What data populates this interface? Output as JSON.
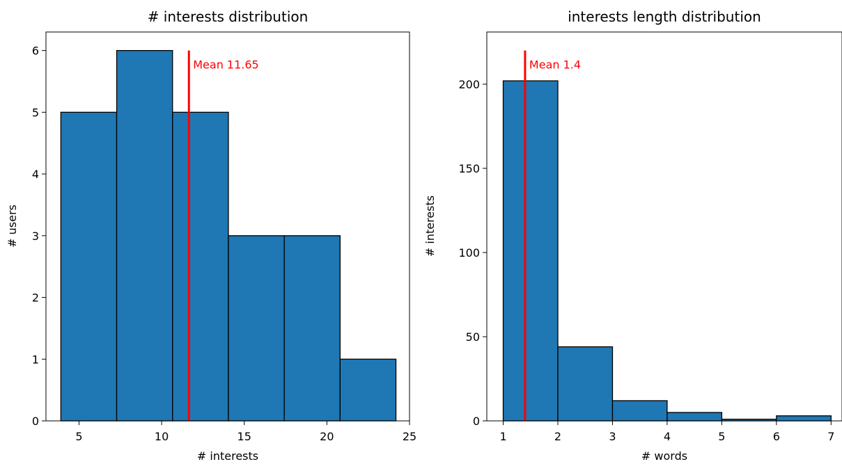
{
  "chart_data": [
    {
      "type": "bar",
      "histogram": true,
      "title": "# interests distribution",
      "xlabel": "# interests",
      "ylabel": "# users",
      "bin_edges": [
        3.9,
        7.28,
        10.66,
        14.04,
        17.42,
        20.8,
        24.18
      ],
      "values": [
        5,
        6,
        5,
        3,
        3,
        1
      ],
      "xlim": [
        3.0,
        25.0
      ],
      "ylim": [
        0,
        6.3
      ],
      "xticks": [
        5,
        10,
        15,
        20,
        25
      ],
      "yticks": [
        0,
        1,
        2,
        3,
        4,
        5,
        6
      ],
      "mean": {
        "value": 11.65,
        "label": "Mean 11.65",
        "line_top": 6
      },
      "bar_color": "#1f77b4",
      "edge_color": "#000000",
      "mean_color": "#ff0000",
      "grid": false
    },
    {
      "type": "bar",
      "histogram": true,
      "title": "interests length distribution",
      "xlabel": "# words",
      "ylabel": "# interests",
      "bin_edges": [
        1,
        2,
        3,
        4,
        5,
        6,
        7
      ],
      "values": [
        202,
        44,
        12,
        5,
        1,
        3
      ],
      "xlim": [
        0.7,
        7.2
      ],
      "ylim": [
        0,
        231
      ],
      "xticks": [
        1,
        2,
        3,
        4,
        5,
        6,
        7
      ],
      "yticks": [
        0,
        50,
        100,
        150,
        200
      ],
      "mean": {
        "value": 1.4,
        "label": "Mean 1.4",
        "line_top": 220
      },
      "bar_color": "#1f77b4",
      "edge_color": "#000000",
      "mean_color": "#ff0000",
      "grid": false
    }
  ]
}
